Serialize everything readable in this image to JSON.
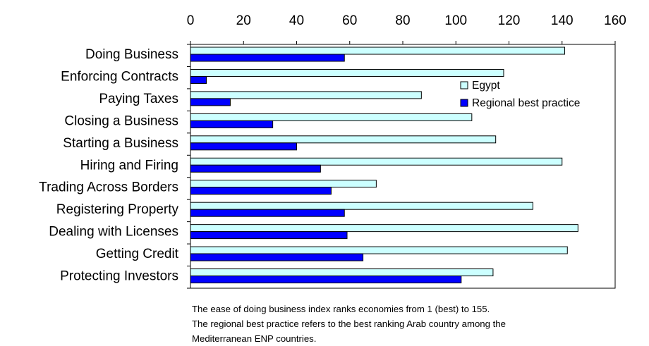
{
  "chart_data": {
    "type": "bar",
    "orientation": "horizontal",
    "categories": [
      "Doing Business",
      "Enforcing Contracts",
      "Paying Taxes",
      "Closing a Business",
      "Starting a Business",
      "Hiring and Firing",
      "Trading Across Borders",
      "Registering Property",
      "Dealing with Licenses",
      "Getting Credit",
      "Protecting Investors"
    ],
    "series": [
      {
        "name": "Egypt",
        "color": "#ccffff",
        "values": [
          141,
          118,
          87,
          106,
          115,
          140,
          70,
          129,
          146,
          142,
          114
        ]
      },
      {
        "name": "Regional best practice",
        "color": "#0000ff",
        "values": [
          58,
          6,
          15,
          31,
          40,
          49,
          53,
          58,
          59,
          65,
          102
        ]
      }
    ],
    "xlim": [
      0,
      160
    ],
    "xticks": [
      0,
      20,
      40,
      60,
      80,
      100,
      120,
      140,
      160
    ],
    "xaxis_position": "top",
    "grid": false,
    "legend_position": "top-right"
  },
  "caption": {
    "lines": [
      "The ease of doing business index ranks economies from 1 (best) to 155.",
      "The regional best practice refers to the best ranking Arab country among the",
      "Mediterranean ENP countries."
    ]
  }
}
